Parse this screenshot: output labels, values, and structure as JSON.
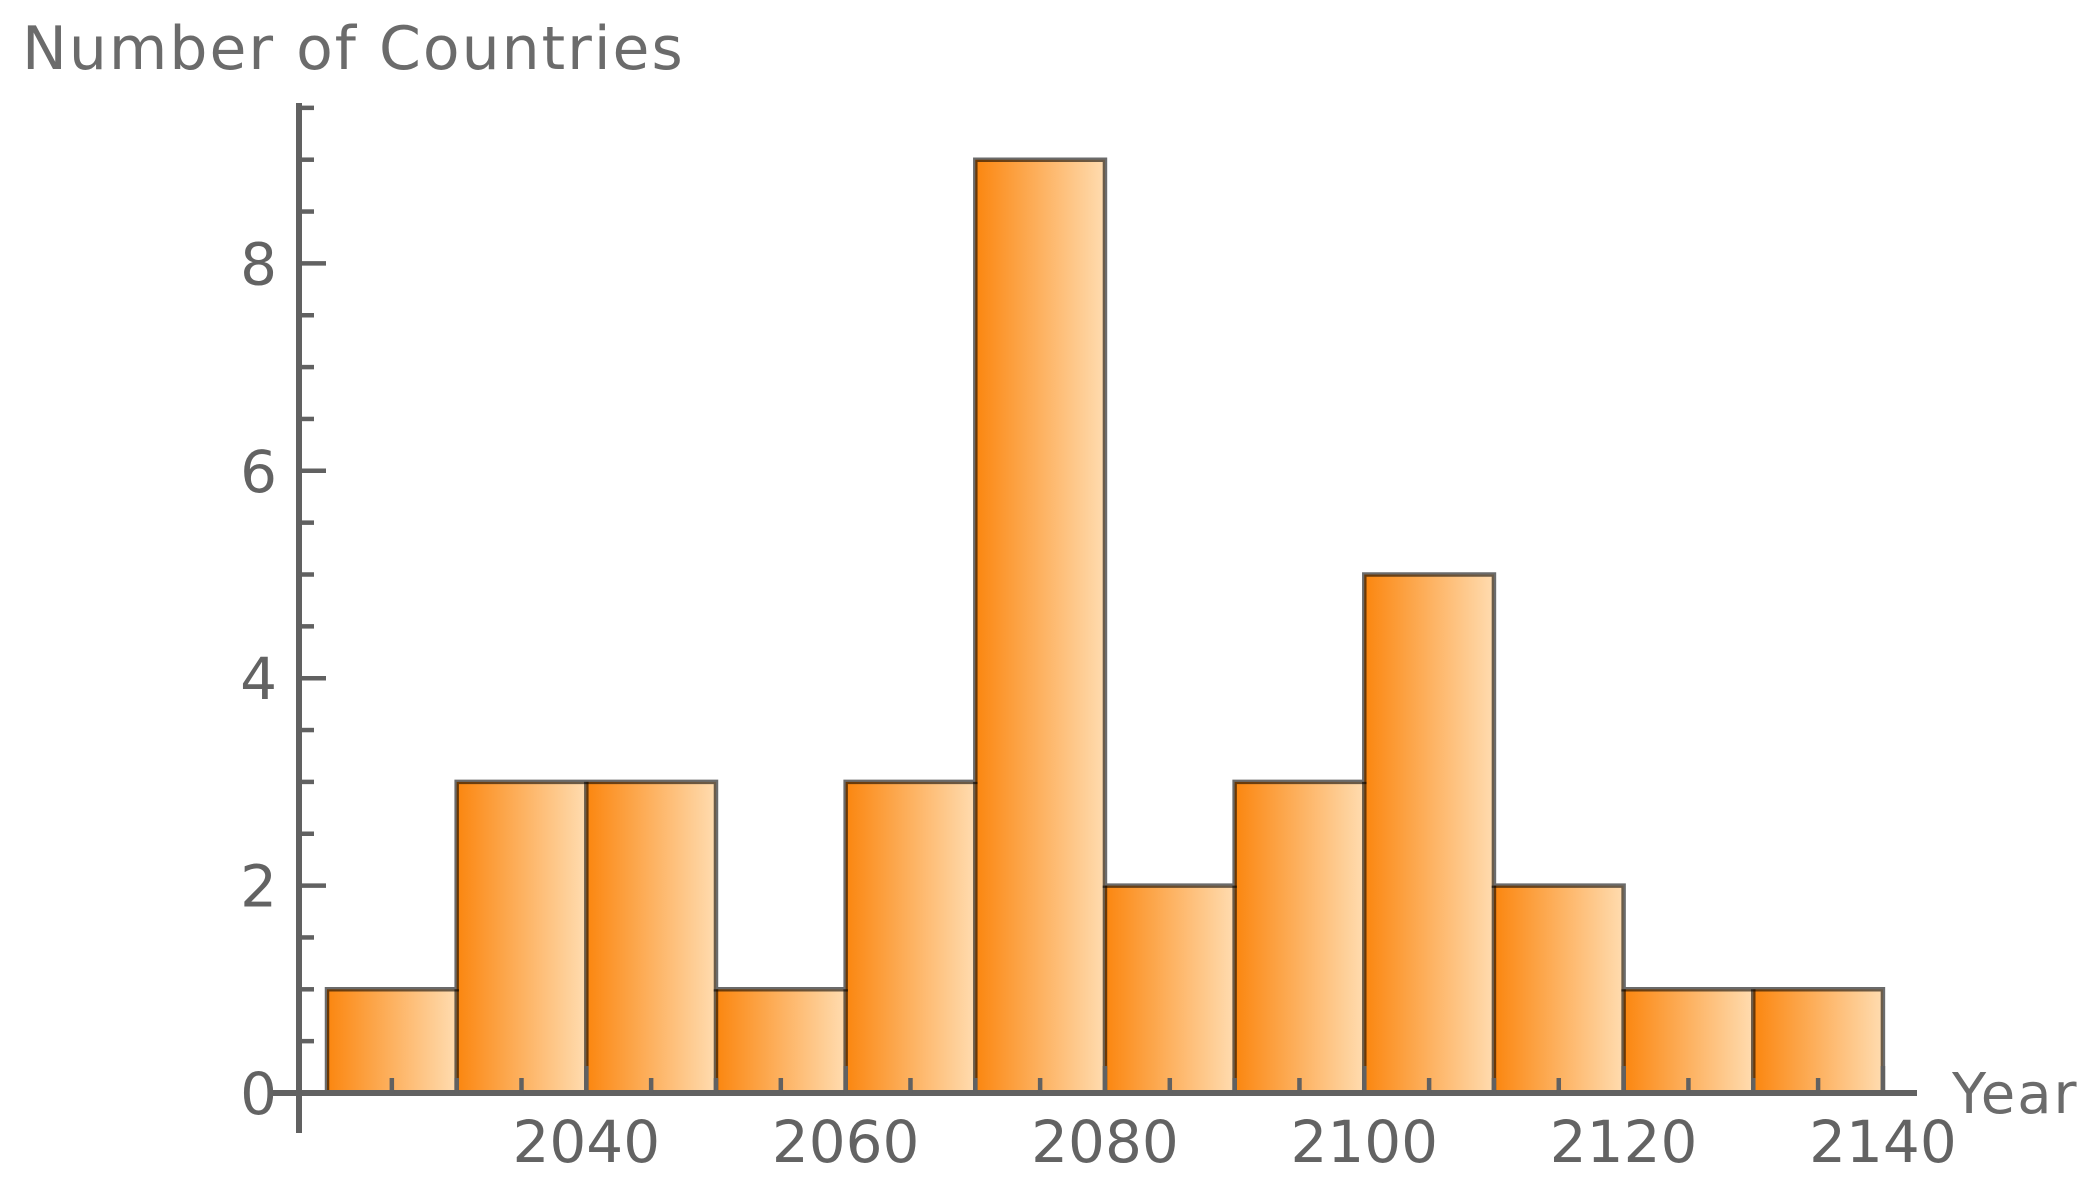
{
  "figure": {
    "background": "#ffffff"
  },
  "chart_data": {
    "type": "bar",
    "subtype": "histogram",
    "title": "",
    "ylabel": "Number of Countries",
    "xlabel": "Year",
    "bin_width_years": 10,
    "bin_edges": [
      2020,
      2030,
      2040,
      2050,
      2060,
      2070,
      2080,
      2090,
      2100,
      2110,
      2120,
      2130,
      2140
    ],
    "counts": [
      1,
      3,
      3,
      1,
      3,
      9,
      2,
      3,
      5,
      2,
      1,
      1
    ],
    "xlim": [
      2015.4,
      2142.6
    ],
    "ylim": [
      0,
      9.55
    ],
    "x_major_ticks": [
      2040,
      2060,
      2080,
      2100,
      2120,
      2140
    ],
    "x_minor_tick_step_years": 5,
    "x_minor_tick_start": 2025,
    "x_minor_tick_end": 2140,
    "y_major_ticks": [
      0,
      2,
      4,
      6,
      8
    ],
    "y_minor_tick_step": 0.5,
    "y_minor_tick_max": 9.5,
    "grid": false,
    "legend": false,
    "bar_gradient_left": "#fb860f",
    "bar_gradient_right": "#ffdcb0",
    "bar_edge_color": "rgba(0,0,0,0.58)",
    "axis_color": "#616161",
    "text_color": "#636363"
  }
}
